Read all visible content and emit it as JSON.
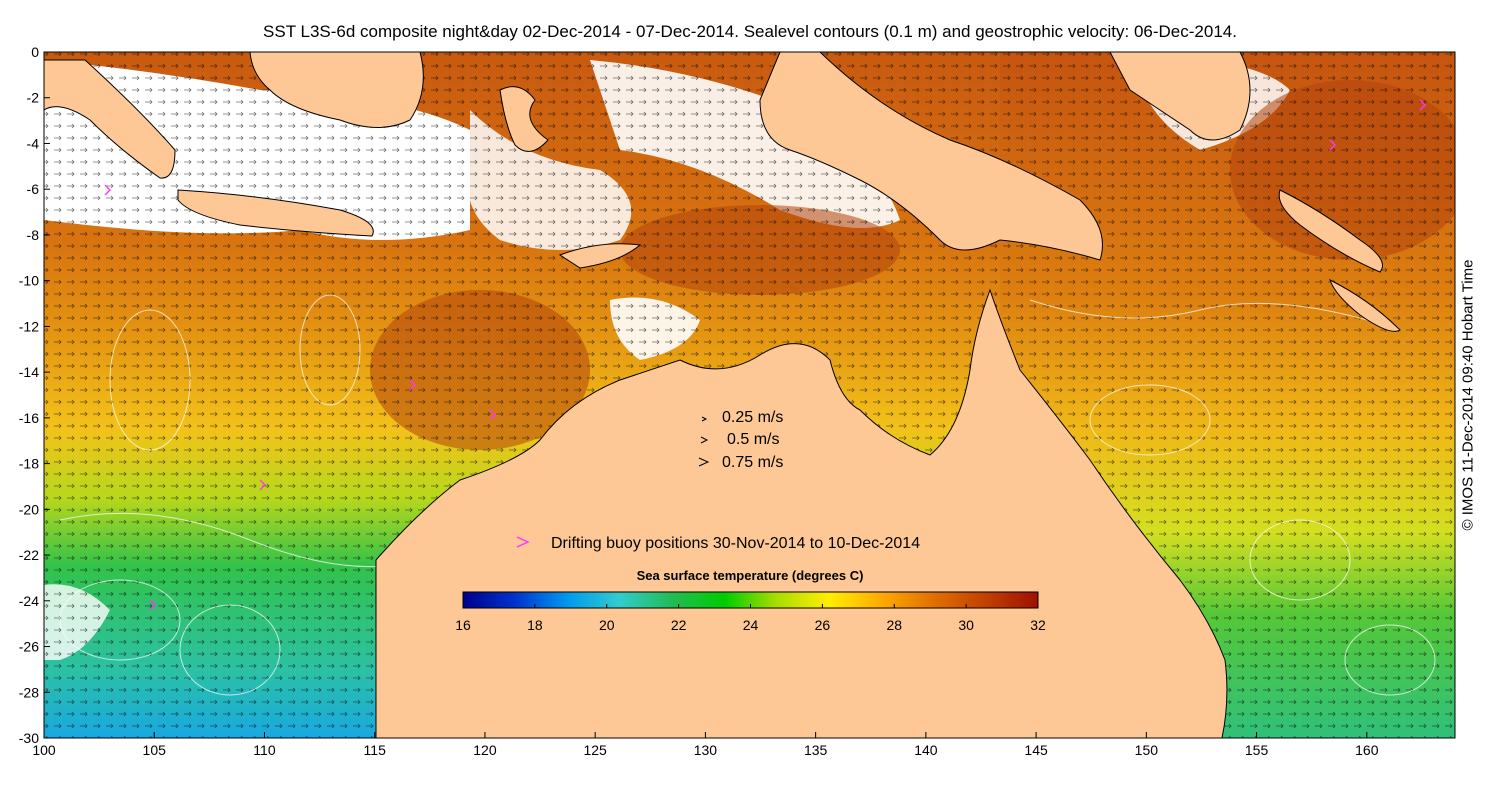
{
  "title": "SST L3S-6d composite night&day 02-Dec-2014 - 07-Dec-2014. Sealevel contours (0.1 m) and geostrophic velocity: 06-Dec-2014.",
  "credit": "© IMOS 11-Dec-2014 09:40 Hobart Time",
  "map": {
    "lon_range": [
      100,
      164
    ],
    "lat_range": [
      -30,
      0
    ],
    "x_ticks": [
      "100",
      "105",
      "110",
      "115",
      "120",
      "125",
      "130",
      "135",
      "140",
      "145",
      "150",
      "155",
      "160"
    ],
    "y_ticks": [
      "0",
      "-2",
      "-4",
      "-6",
      "-8",
      "-10",
      "-12",
      "-14",
      "-16",
      "-18",
      "-20",
      "-22",
      "-24",
      "-26",
      "-28",
      "-30"
    ],
    "colors": {
      "land": "#fdc896",
      "missing": "#ffffff",
      "buoy": "#ff33ff"
    }
  },
  "velocity_legend": {
    "items": [
      {
        "label": "0.25 m/s",
        "speed": 0.25
      },
      {
        "label": "0.5 m/s",
        "speed": 0.5
      },
      {
        "label": "0.75 m/s",
        "speed": 0.75
      }
    ]
  },
  "buoy_legend": {
    "label": "Drifting buoy positions 30-Nov-2014 to 10-Dec-2014"
  },
  "colorbar": {
    "title": "Sea surface temperature (degrees C)",
    "range": [
      16,
      32
    ],
    "ticks": [
      "16",
      "18",
      "20",
      "22",
      "24",
      "26",
      "28",
      "30",
      "32"
    ],
    "stops": [
      "#00008c",
      "#0033cc",
      "#0099ee",
      "#33cccc",
      "#22bb55",
      "#00cc00",
      "#aadd00",
      "#ffee00",
      "#ffaa00",
      "#e07000",
      "#c04000",
      "#a01000"
    ]
  }
}
